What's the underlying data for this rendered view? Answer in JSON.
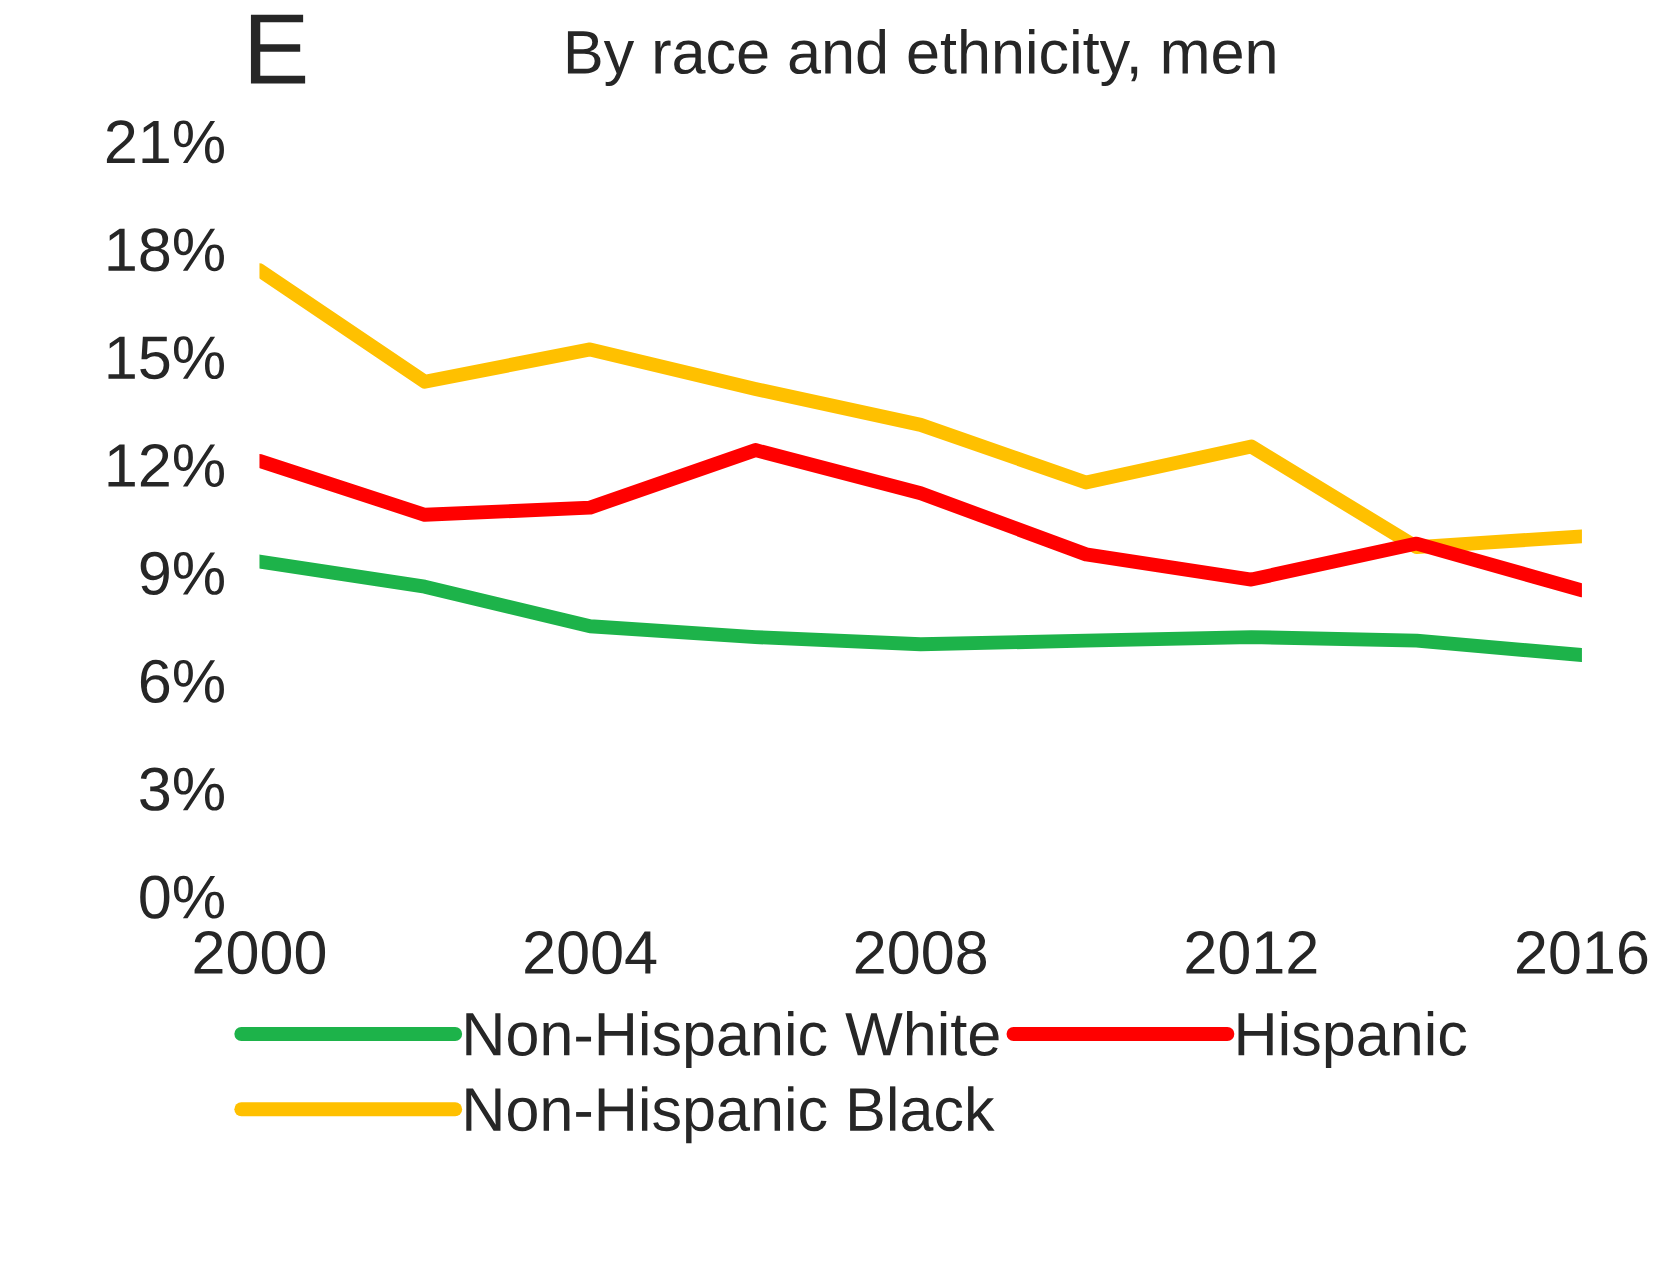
{
  "chart_data": {
    "type": "line",
    "title": "By race and ethnicity, men",
    "annotations": [
      "E"
    ],
    "x": [
      2000,
      2002,
      2004,
      2006,
      2008,
      2010,
      2012,
      2014,
      2016
    ],
    "series": [
      {
        "name": "Non-Hispanic White",
        "color": "#1db34a",
        "values": [
          9.3,
          8.6,
          7.5,
          7.2,
          7.0,
          7.1,
          7.2,
          7.1,
          6.7
        ]
      },
      {
        "name": "Non-Hispanic Black",
        "color": "#ffc000",
        "values": [
          17.4,
          14.3,
          15.2,
          14.1,
          13.1,
          11.5,
          12.5,
          9.7,
          10.0
        ]
      },
      {
        "name": "Hispanic",
        "color": "#ff0000",
        "values": [
          12.1,
          10.6,
          10.8,
          12.4,
          11.2,
          9.5,
          8.8,
          9.8,
          8.5
        ]
      }
    ],
    "xlim": [
      2000,
      2016
    ],
    "xticks": [
      2000,
      2004,
      2008,
      2012,
      2016
    ],
    "ylim": [
      0,
      21
    ],
    "yticks": [
      {
        "value": 0,
        "label": "0%"
      },
      {
        "value": 3,
        "label": "3%"
      },
      {
        "value": 6,
        "label": "6%"
      },
      {
        "value": 9,
        "label": "9%"
      },
      {
        "value": 12,
        "label": "12%"
      },
      {
        "value": 15,
        "label": "15%"
      },
      {
        "value": 18,
        "label": "18%"
      },
      {
        "value": 21,
        "label": "21%"
      }
    ],
    "grid": false,
    "legend": "bottom",
    "marker": "none",
    "line_style": "solid"
  }
}
